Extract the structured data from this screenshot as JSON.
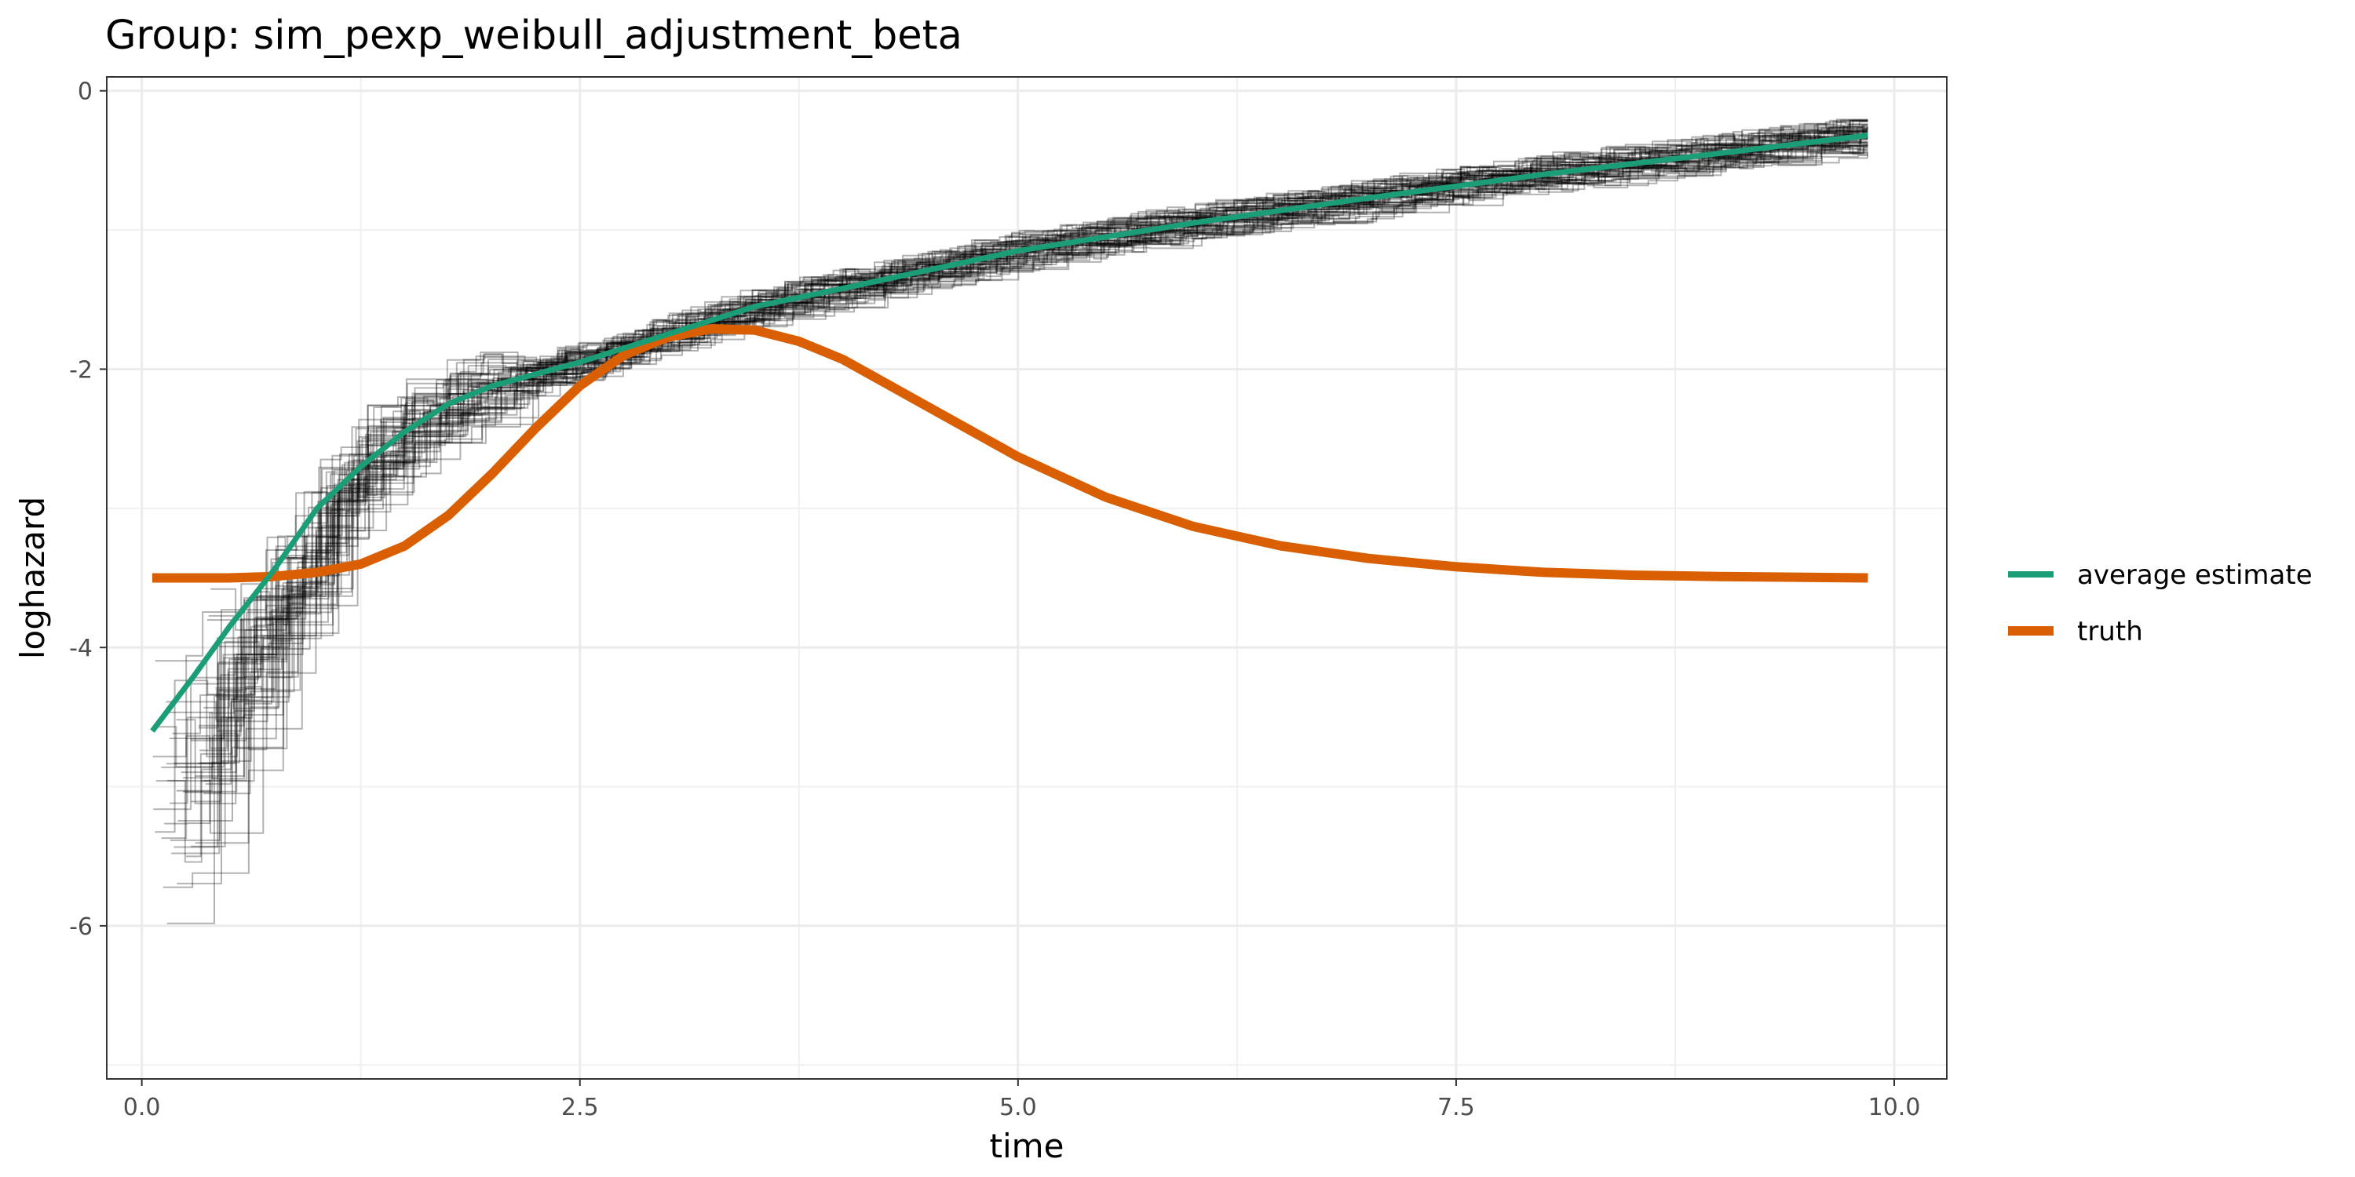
{
  "chart_data": {
    "type": "line",
    "title": "Group: sim_pexp_weibull_adjustment_beta",
    "xlabel": "time",
    "ylabel": "loghazard",
    "xlim": [
      -0.2,
      10.3
    ],
    "ylim": [
      -7.1,
      0.1
    ],
    "x_ticks": [
      0.0,
      2.5,
      5.0,
      7.5,
      10.0
    ],
    "x_tick_labels": [
      "0.0",
      "2.5",
      "5.0",
      "7.5",
      "10.0"
    ],
    "y_ticks": [
      0,
      -2,
      -4,
      -6
    ],
    "y_tick_labels": [
      "0",
      "-2",
      "-4",
      "-6"
    ],
    "grid": true,
    "legend_position": "right",
    "series": [
      {
        "name": "average estimate",
        "color": "#1b9e77",
        "x": [
          0.06,
          0.3,
          0.5,
          0.75,
          1.0,
          1.25,
          1.5,
          1.75,
          2.0,
          2.5,
          3.0,
          3.5,
          4.0,
          5.0,
          6.0,
          7.0,
          8.0,
          9.0,
          9.85
        ],
        "y": [
          -4.6,
          -4.2,
          -3.85,
          -3.45,
          -3.0,
          -2.7,
          -2.45,
          -2.25,
          -2.12,
          -1.95,
          -1.75,
          -1.55,
          -1.42,
          -1.15,
          -0.95,
          -0.77,
          -0.6,
          -0.45,
          -0.32
        ]
      },
      {
        "name": "truth",
        "color": "#d95f02",
        "x": [
          0.06,
          0.5,
          0.75,
          1.0,
          1.25,
          1.5,
          1.75,
          2.0,
          2.25,
          2.5,
          2.75,
          3.0,
          3.25,
          3.5,
          3.75,
          4.0,
          4.5,
          5.0,
          5.5,
          6.0,
          6.5,
          7.0,
          7.5,
          8.0,
          8.5,
          9.0,
          9.85
        ],
        "y": [
          -3.5,
          -3.5,
          -3.49,
          -3.46,
          -3.4,
          -3.27,
          -3.05,
          -2.75,
          -2.42,
          -2.12,
          -1.9,
          -1.77,
          -1.71,
          -1.72,
          -1.8,
          -1.93,
          -2.28,
          -2.63,
          -2.92,
          -3.13,
          -3.27,
          -3.36,
          -3.42,
          -3.46,
          -3.48,
          -3.49,
          -3.5
        ]
      }
    ],
    "background_estimates": {
      "description_color": "#000000",
      "count": 60
    }
  }
}
